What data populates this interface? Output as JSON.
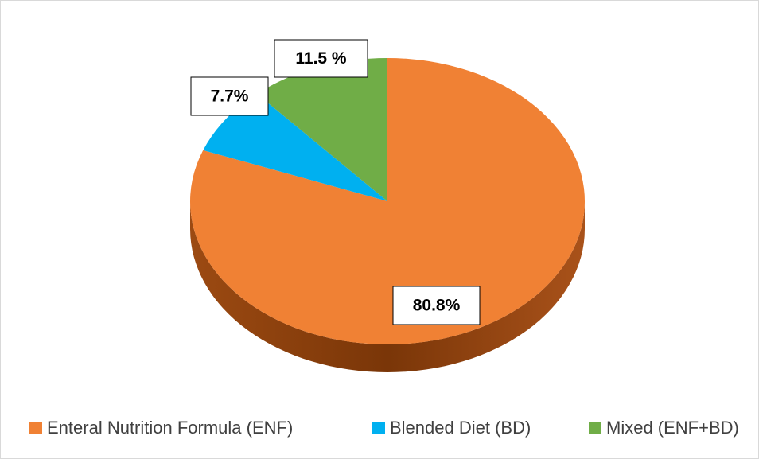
{
  "chart_data": {
    "type": "pie",
    "categories": [
      "Enteral Nutrition Formula (ENF)",
      "Blended Diet (BD)",
      "Mixed (ENF+BD)"
    ],
    "values": [
      80.8,
      7.7,
      11.5
    ],
    "value_labels": [
      "80.8%",
      "7.7%",
      "11.5 %"
    ],
    "colors": [
      "#f08134",
      "#00b0f0",
      "#70ad47"
    ],
    "legend": "bottom"
  }
}
